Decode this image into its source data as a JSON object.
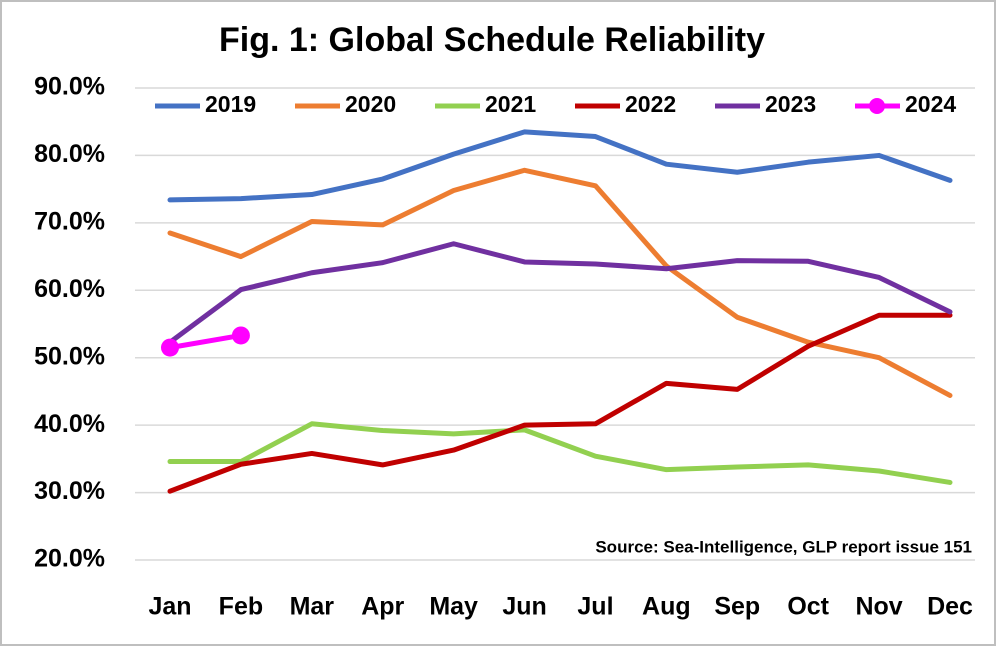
{
  "chart_data": {
    "type": "line",
    "title": "Fig. 1: Global Schedule Reliability",
    "annotation": "Source: Sea-Intelligence, GLP report issue 151",
    "categories": [
      "Jan",
      "Feb",
      "Mar",
      "Apr",
      "May",
      "Jun",
      "Jul",
      "Aug",
      "Sep",
      "Oct",
      "Nov",
      "Dec"
    ],
    "series": [
      {
        "name": "2019",
        "color": "#4472c4",
        "values": [
          73.4,
          73.6,
          74.2,
          76.5,
          80.2,
          83.5,
          82.8,
          78.7,
          77.5,
          79.0,
          80.0,
          76.3
        ]
      },
      {
        "name": "2020",
        "color": "#ed7d31",
        "values": [
          68.5,
          65.0,
          70.2,
          69.7,
          74.8,
          77.8,
          75.5,
          63.6,
          56.0,
          52.3,
          50.0,
          44.4
        ]
      },
      {
        "name": "2021",
        "color": "#92d050",
        "values": [
          34.6,
          34.6,
          40.2,
          39.2,
          38.7,
          39.3,
          35.4,
          33.4,
          33.8,
          34.1,
          33.2,
          31.5
        ]
      },
      {
        "name": "2022",
        "color": "#c00000",
        "values": [
          30.2,
          34.2,
          35.8,
          34.1,
          36.3,
          40.0,
          40.2,
          46.2,
          45.3,
          51.7,
          56.3,
          56.3
        ]
      },
      {
        "name": "2023",
        "color": "#7030a0",
        "values": [
          52.3,
          60.1,
          62.6,
          64.1,
          66.9,
          64.2,
          63.9,
          63.2,
          64.4,
          64.3,
          61.9,
          56.8
        ]
      },
      {
        "name": "2024",
        "color": "#ff00ff",
        "markers": true,
        "values": [
          51.5,
          53.3,
          null,
          null,
          null,
          null,
          null,
          null,
          null,
          null,
          null,
          null
        ]
      }
    ],
    "ylim": [
      20,
      90
    ],
    "yticks": [
      {
        "value": 20,
        "label": "20.0%"
      },
      {
        "value": 30,
        "label": "30.0%"
      },
      {
        "value": 40,
        "label": "40.0%"
      },
      {
        "value": 50,
        "label": "50.0%"
      },
      {
        "value": 60,
        "label": "60.0%"
      },
      {
        "value": 70,
        "label": "70.0%"
      },
      {
        "value": 80,
        "label": "80.0%"
      },
      {
        "value": 90,
        "label": "90.0%"
      }
    ],
    "grid": true,
    "legend": "top"
  }
}
